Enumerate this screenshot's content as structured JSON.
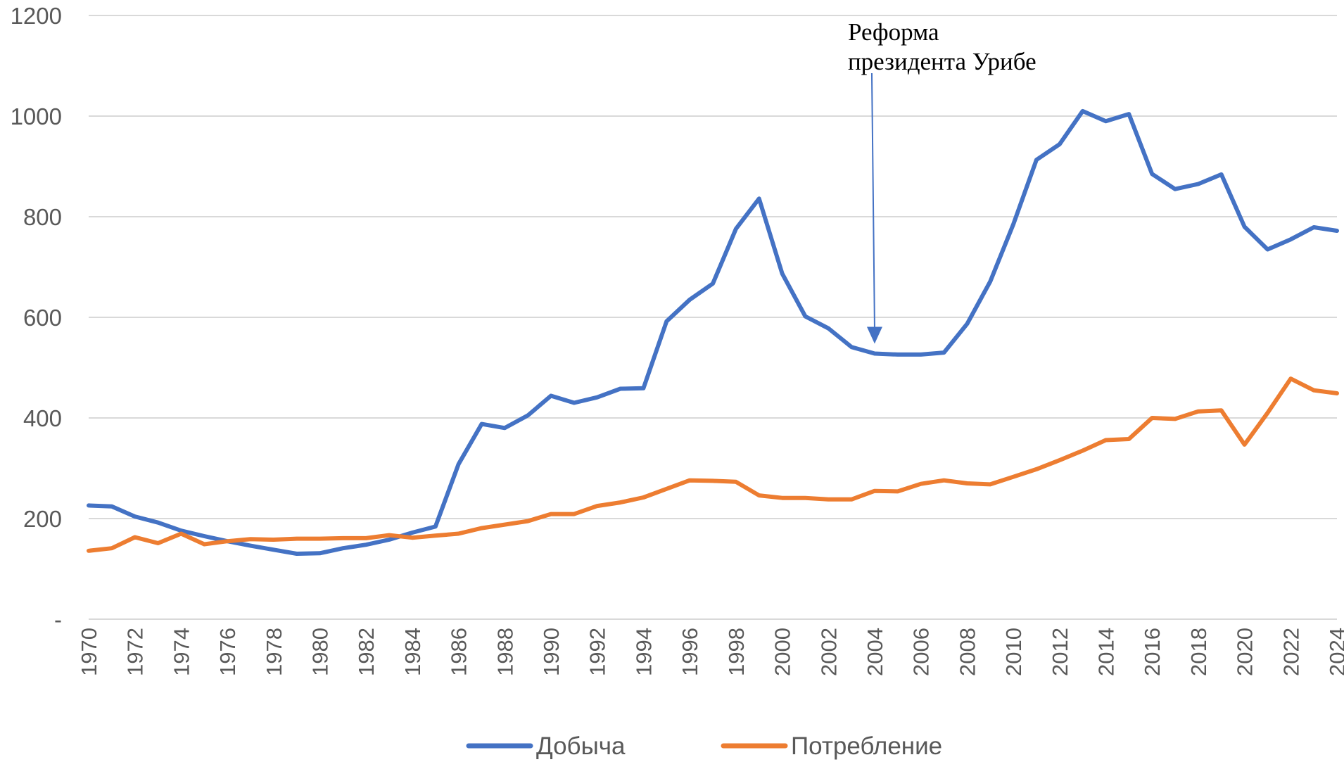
{
  "chart_data": {
    "type": "line",
    "x": [
      1970,
      1971,
      1972,
      1973,
      1974,
      1975,
      1976,
      1977,
      1978,
      1979,
      1980,
      1981,
      1982,
      1983,
      1984,
      1985,
      1986,
      1987,
      1988,
      1989,
      1990,
      1991,
      1992,
      1993,
      1994,
      1995,
      1996,
      1997,
      1998,
      1999,
      2000,
      2001,
      2002,
      2003,
      2004,
      2005,
      2006,
      2007,
      2008,
      2009,
      2010,
      2011,
      2012,
      2013,
      2014,
      2015,
      2016,
      2017,
      2018,
      2019,
      2020,
      2021,
      2022,
      2023,
      2024
    ],
    "x_tick_labels": [
      "1970",
      "1972",
      "1974",
      "1976",
      "1978",
      "1980",
      "1982",
      "1984",
      "1986",
      "1988",
      "1990",
      "1992",
      "1994",
      "1996",
      "1998",
      "2000",
      "2002",
      "2004",
      "2006",
      "2008",
      "2010",
      "2012",
      "2014",
      "2016",
      "2018",
      "2020",
      "2022",
      "2024"
    ],
    "y_tick_labels": [
      "-",
      "200",
      "400",
      "600",
      "800",
      "1000",
      "1200"
    ],
    "ylim": [
      0,
      1200
    ],
    "grid": true,
    "legend_position": "bottom",
    "series": [
      {
        "name": "Добыча",
        "color": "#4472C4",
        "values": [
          226,
          224,
          204,
          192,
          176,
          165,
          155,
          146,
          138,
          130,
          131,
          141,
          148,
          158,
          172,
          184,
          308,
          388,
          380,
          405,
          444,
          430,
          441,
          458,
          459,
          592,
          635,
          667,
          776,
          836,
          687,
          602,
          578,
          541,
          528,
          526,
          526,
          530,
          587,
          671,
          785,
          913,
          944,
          1010,
          990,
          1004,
          885,
          855,
          865,
          884,
          780,
          735,
          755,
          779,
          772
        ]
      },
      {
        "name": "Потребление",
        "color": "#ED7D31",
        "values": [
          136,
          141,
          163,
          151,
          170,
          149,
          155,
          159,
          158,
          160,
          160,
          161,
          161,
          167,
          162,
          166,
          170,
          181,
          188,
          195,
          209,
          209,
          225,
          232,
          242,
          259,
          276,
          275,
          273,
          246,
          241,
          241,
          238,
          238,
          255,
          254,
          269,
          276,
          270,
          268,
          283,
          298,
          316,
          335,
          356,
          358,
          400,
          398,
          413,
          415,
          347,
          410,
          478,
          455,
          449
        ]
      }
    ],
    "annotations": [
      {
        "lines": [
          "Реформа",
          "президента Урибе"
        ],
        "x": 2004,
        "y": 528
      }
    ]
  }
}
